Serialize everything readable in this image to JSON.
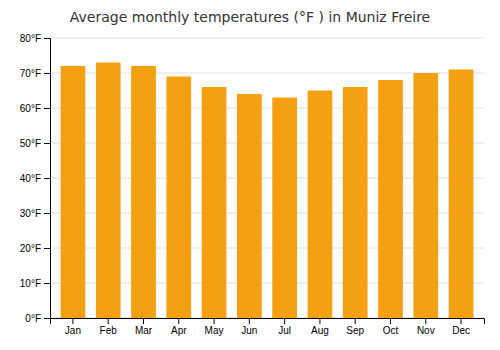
{
  "chart_data": {
    "type": "bar",
    "title": "Average monthly temperatures (°F ) in Muniz Freire",
    "categories": [
      "Jan",
      "Feb",
      "Mar",
      "Apr",
      "May",
      "Jun",
      "Jul",
      "Aug",
      "Sep",
      "Oct",
      "Nov",
      "Dec"
    ],
    "values": [
      72,
      73,
      72,
      69,
      66,
      64,
      63,
      65,
      66,
      68,
      70,
      71
    ],
    "color": "#F5A010",
    "ylim": [
      0,
      80
    ],
    "yticks": [
      {
        "value": 0,
        "label": "0°F"
      },
      {
        "value": 10,
        "label": "10°F"
      },
      {
        "value": 20,
        "label": "20°F"
      },
      {
        "value": 30,
        "label": "30°F"
      },
      {
        "value": 40,
        "label": "40°F"
      },
      {
        "value": 50,
        "label": "50°F"
      },
      {
        "value": 60,
        "label": "60°F"
      },
      {
        "value": 70,
        "label": "70°F"
      },
      {
        "value": 80,
        "label": "80°F"
      }
    ],
    "grid": true
  }
}
